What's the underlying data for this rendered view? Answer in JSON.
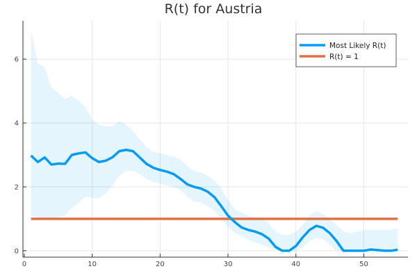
{
  "chart_data": {
    "type": "line",
    "title": "R(t) for Austria",
    "xlabel": "",
    "ylabel": "",
    "xlim": [
      -0.2,
      56.5
    ],
    "ylim": [
      -0.2,
      7.2
    ],
    "xticks": [
      0,
      10,
      20,
      30,
      40,
      50
    ],
    "yticks": [
      0,
      2,
      4,
      6
    ],
    "grid": true,
    "legend_position": "top-right",
    "band": {
      "x": [
        1,
        2,
        3,
        4,
        5,
        6,
        7,
        8,
        9,
        10,
        11,
        12,
        13,
        14,
        15,
        16,
        17,
        18,
        19,
        20,
        21,
        22,
        23,
        24,
        25,
        26,
        27,
        28,
        29,
        30,
        31,
        32,
        33,
        34,
        35,
        36,
        37,
        38,
        39,
        40,
        41,
        42,
        43,
        44,
        45,
        46,
        47,
        48,
        49,
        50,
        51,
        52,
        53,
        54,
        55
      ],
      "lower": [
        1.1,
        1.05,
        1.0,
        1.0,
        1.05,
        1.1,
        1.35,
        1.5,
        1.7,
        1.65,
        1.65,
        1.8,
        2.05,
        2.35,
        2.5,
        2.5,
        2.4,
        2.25,
        2.15,
        2.1,
        2.05,
        2.0,
        1.9,
        1.7,
        1.55,
        1.5,
        1.4,
        1.25,
        1.0,
        0.75,
        0.55,
        0.45,
        0.35,
        0.25,
        0.2,
        0.1,
        0.02,
        0.0,
        0.0,
        0.0,
        0.1,
        0.3,
        0.4,
        0.35,
        0.2,
        0.0,
        0.0,
        0.0,
        0.0,
        0.0,
        0.0,
        0.0,
        0.0,
        0.0,
        0.0
      ],
      "upper": [
        6.9,
        5.85,
        5.75,
        5.1,
        4.95,
        4.75,
        4.85,
        4.7,
        4.5,
        4.1,
        3.95,
        3.9,
        3.9,
        4.05,
        3.95,
        3.75,
        3.5,
        3.25,
        3.1,
        3.05,
        3.0,
        2.95,
        2.85,
        2.65,
        2.5,
        2.45,
        2.35,
        2.2,
        1.95,
        1.6,
        1.3,
        1.2,
        1.1,
        1.05,
        1.0,
        0.85,
        0.6,
        0.5,
        0.5,
        0.6,
        0.8,
        1.1,
        1.25,
        1.15,
        1.0,
        0.8,
        0.6,
        0.55,
        0.6,
        0.65,
        0.65,
        0.65,
        0.65,
        0.65,
        0.72
      ]
    },
    "series": [
      {
        "name": "Most Likely R(t)",
        "color": "#009af9",
        "x": [
          1,
          2,
          3,
          4,
          5,
          6,
          7,
          8,
          9,
          10,
          11,
          12,
          13,
          14,
          15,
          16,
          17,
          18,
          19,
          20,
          21,
          22,
          23,
          24,
          25,
          26,
          27,
          28,
          29,
          30,
          31,
          32,
          33,
          34,
          35,
          36,
          37,
          38,
          39,
          40,
          41,
          42,
          43,
          44,
          45,
          46,
          47,
          48,
          49,
          50,
          51,
          52,
          53,
          54,
          55
        ],
        "y": [
          2.98,
          2.78,
          2.92,
          2.7,
          2.73,
          2.72,
          3.0,
          3.05,
          3.08,
          2.9,
          2.78,
          2.82,
          2.93,
          3.12,
          3.16,
          3.12,
          2.92,
          2.72,
          2.6,
          2.53,
          2.48,
          2.4,
          2.25,
          2.08,
          2.0,
          1.95,
          1.85,
          1.68,
          1.4,
          1.1,
          0.9,
          0.73,
          0.65,
          0.6,
          0.52,
          0.38,
          0.12,
          0.0,
          0.0,
          0.15,
          0.42,
          0.65,
          0.78,
          0.72,
          0.55,
          0.3,
          0.0,
          0.0,
          0.0,
          0.0,
          0.04,
          0.02,
          0.0,
          0.0,
          0.03
        ]
      },
      {
        "name": "R(t) = 1",
        "color": "#e26f46",
        "x": [
          1,
          55
        ],
        "y": [
          1,
          1
        ]
      }
    ],
    "band_color": "#009af9"
  }
}
